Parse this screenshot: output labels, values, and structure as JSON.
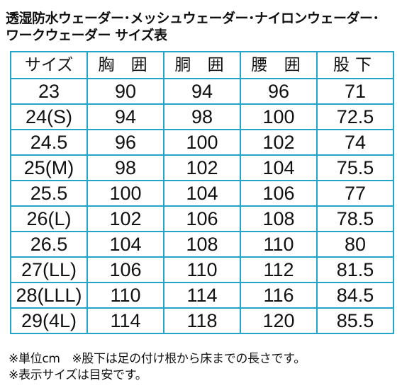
{
  "title": {
    "line1": "透湿防水ウェーダー･メッシュウェーダー･ナイロンウェーダー･",
    "line2": "ワークウェーダー サイズ表"
  },
  "table": {
    "headers": [
      "サイズ",
      "胸 囲",
      "胴 囲",
      "腰 囲",
      "股下"
    ],
    "rows": [
      [
        "23",
        "90",
        "94",
        "96",
        "71"
      ],
      [
        "24(S)",
        "94",
        "98",
        "100",
        "72.5"
      ],
      [
        "24.5",
        "96",
        "100",
        "102",
        "74"
      ],
      [
        "25(M)",
        "98",
        "102",
        "104",
        "75.5"
      ],
      [
        "25.5",
        "100",
        "104",
        "106",
        "77"
      ],
      [
        "26(L)",
        "102",
        "106",
        "108",
        "78.5"
      ],
      [
        "26.5",
        "104",
        "108",
        "110",
        "80"
      ],
      [
        "27(LL)",
        "106",
        "110",
        "112",
        "81.5"
      ],
      [
        "28(LLL)",
        "110",
        "114",
        "116",
        "84.5"
      ],
      [
        "29(4L)",
        "114",
        "118",
        "120",
        "85.5"
      ]
    ],
    "border_color": "#23a4c8"
  },
  "notes": {
    "line1": "※単位cm　※股下は足の付け根から床までの長さです。",
    "line2": "※表示サイズは目安です。"
  }
}
